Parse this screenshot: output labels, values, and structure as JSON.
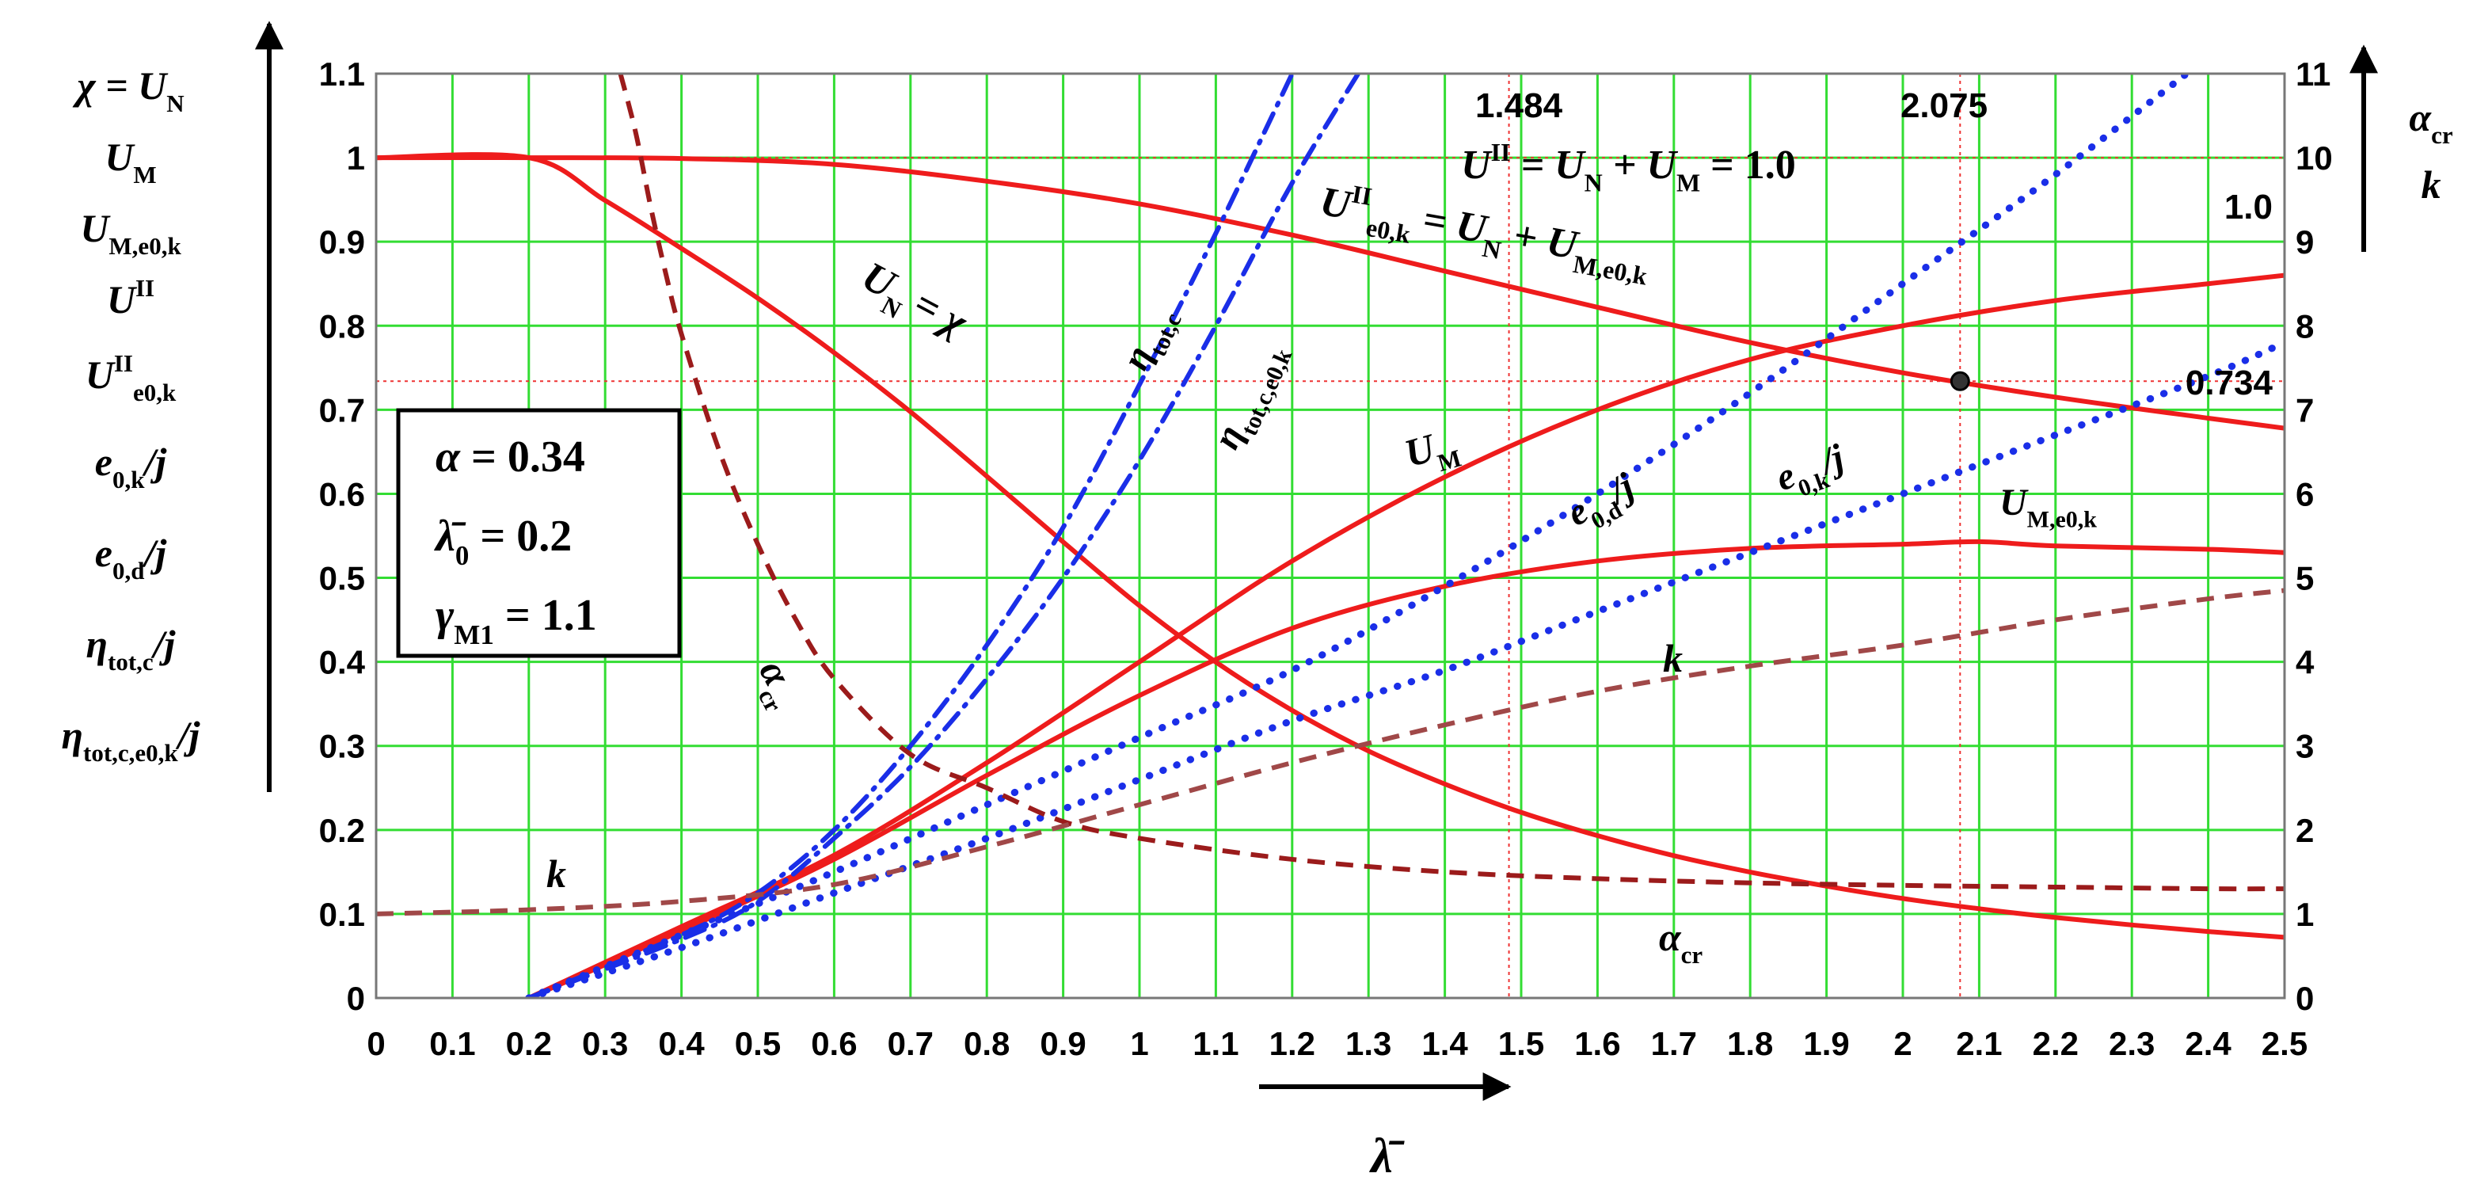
{
  "chart_data": {
    "type": "line",
    "x_axis": {
      "label": "λ̄",
      "range": [
        0,
        2.5
      ],
      "ticks": [
        "0",
        "0.1",
        "0.2",
        "0.3",
        "0.4",
        "0.5",
        "0.6",
        "0.7",
        "0.8",
        "0.9",
        "1",
        "1.1",
        "1.2",
        "1.3",
        "1.4",
        "1.5",
        "1.6",
        "1.7",
        "1.8",
        "1.9",
        "2",
        "2.1",
        "2.2",
        "2.3",
        "2.4",
        "2.5"
      ]
    },
    "y_axis_left": {
      "range": [
        0,
        1.1
      ],
      "ticks": [
        "0",
        "0.1",
        "0.2",
        "0.3",
        "0.4",
        "0.5",
        "0.6",
        "0.7",
        "0.8",
        "0.9",
        "1",
        "1.1"
      ],
      "labels": [
        {
          "main": "χ = U",
          "sub": "N"
        },
        {
          "main": "U",
          "sub": "M"
        },
        {
          "main": "U",
          "sub": "M,e0,k"
        },
        {
          "main": "U",
          "sup": "II"
        },
        {
          "main": "U",
          "sup": "II",
          "sub": "e0,k"
        },
        {
          "main": "e",
          "sub": "0,k",
          "tail": "/j"
        },
        {
          "main": "e",
          "sub": "0,d",
          "tail": "/j"
        },
        {
          "main": "η",
          "sub": "tot,c",
          "tail": "/j"
        },
        {
          "main": "η",
          "sub": "tot,c,e0,k",
          "tail": "/j"
        }
      ]
    },
    "y_axis_right": {
      "range": [
        0,
        11
      ],
      "ticks": [
        "0",
        "1",
        "2",
        "3",
        "4",
        "5",
        "6",
        "7",
        "8",
        "9",
        "10",
        "11"
      ],
      "labels": [
        {
          "main": "α",
          "sub": "cr"
        },
        {
          "main": "k"
        }
      ]
    },
    "grid": true,
    "grid_color": "#33dd33",
    "params_box": [
      {
        "lhs": "α",
        "rhs": "= 0.34"
      },
      {
        "lhs": "λ̄",
        "sub": "0",
        "rhs": "= 0.2"
      },
      {
        "lhs": "γ",
        "sub": "M1",
        "rhs": "= 1.1"
      }
    ],
    "reference_lines": [
      {
        "axis": "x",
        "value": 1.484,
        "label": "1.484"
      },
      {
        "axis": "x",
        "value": 2.075,
        "label": "2.075"
      },
      {
        "axis": "y",
        "value": 1.0,
        "label": "1.0"
      },
      {
        "axis": "y",
        "value": 0.734,
        "label": "0.734"
      }
    ],
    "marker": {
      "x": 2.075,
      "y": 0.734
    },
    "series": [
      {
        "name": "U_N = χ",
        "color": "#ee1c1c",
        "style": "solid",
        "axis": "left",
        "x": [
          0,
          0.2,
          0.3,
          0.4,
          0.5,
          0.6,
          0.7,
          0.8,
          0.9,
          1.0,
          1.1,
          1.2,
          1.3,
          1.4,
          1.5,
          1.6,
          1.7,
          1.8,
          1.9,
          2.0,
          2.1,
          2.2,
          2.3,
          2.4,
          2.5
        ],
        "y": [
          1.0,
          1.0,
          0.9491,
          0.892,
          0.8328,
          0.768,
          0.6976,
          0.6208,
          0.5427,
          0.4669,
          0.3998,
          0.3423,
          0.2939,
          0.2546,
          0.2209,
          0.1932,
          0.1694,
          0.1498,
          0.1331,
          0.1184,
          0.1062,
          0.0958,
          0.0869,
          0.0791,
          0.0722
        ]
      },
      {
        "name": "U^II_e0,k = U_N + U_M,e0,k",
        "color": "#ee1c1c",
        "style": "solid",
        "axis": "left",
        "x": [
          0,
          0.2,
          0.4,
          0.6,
          0.8,
          1.0,
          1.2,
          1.4,
          1.6,
          1.8,
          2.0,
          2.2,
          2.4,
          2.5
        ],
        "y": [
          1.0,
          1.0,
          0.999,
          0.992,
          0.972,
          0.945,
          0.908,
          0.865,
          0.822,
          0.78,
          0.744,
          0.715,
          0.69,
          0.678
        ]
      },
      {
        "name": "U_M",
        "color": "#ee1c1c",
        "style": "solid",
        "axis": "left",
        "x": [
          0.2,
          0.4,
          0.6,
          0.8,
          1.0,
          1.2,
          1.4,
          1.6,
          1.8,
          2.0,
          2.2,
          2.4,
          2.5
        ],
        "y": [
          0.0,
          0.085,
          0.17,
          0.28,
          0.4,
          0.52,
          0.62,
          0.7,
          0.76,
          0.8,
          0.83,
          0.85,
          0.86
        ]
      },
      {
        "name": "U_M,e0,k",
        "color": "#ee1c1c",
        "style": "solid",
        "axis": "left",
        "x": [
          0.2,
          0.4,
          0.6,
          0.8,
          1.0,
          1.2,
          1.4,
          1.6,
          1.8,
          2.0,
          2.1,
          2.2,
          2.4,
          2.5
        ],
        "y": [
          0.0,
          0.08,
          0.165,
          0.265,
          0.36,
          0.44,
          0.49,
          0.52,
          0.535,
          0.54,
          0.543,
          0.538,
          0.534,
          0.53
        ]
      },
      {
        "name": "η_tot,c",
        "color": "#1a2ee8",
        "style": "dashdot",
        "axis": "left",
        "x": [
          0.2,
          0.4,
          0.5,
          0.6,
          0.7,
          0.8,
          0.9,
          1.0,
          1.1,
          1.2
        ],
        "y": [
          0.0,
          0.075,
          0.125,
          0.2,
          0.3,
          0.42,
          0.56,
          0.73,
          0.91,
          1.1
        ]
      },
      {
        "name": "η_tot,c,e0,k",
        "color": "#1a2ee8",
        "style": "dashdot",
        "axis": "left",
        "x": [
          0.2,
          0.4,
          0.5,
          0.6,
          0.7,
          0.8,
          0.9,
          1.0,
          1.1,
          1.2,
          1.3
        ],
        "y": [
          0.0,
          0.07,
          0.115,
          0.19,
          0.275,
          0.38,
          0.5,
          0.64,
          0.8,
          0.97,
          1.12
        ]
      },
      {
        "name": "e0,d/j",
        "color": "#1a2ee8",
        "style": "dotted",
        "axis": "left",
        "x": [
          0.2,
          0.4,
          0.6,
          0.8,
          1.0,
          1.2,
          1.4,
          1.6,
          1.8,
          2.0,
          2.2,
          2.4
        ],
        "y": [
          0.0,
          0.075,
          0.15,
          0.23,
          0.31,
          0.39,
          0.49,
          0.6,
          0.72,
          0.85,
          0.98,
          1.12
        ]
      },
      {
        "name": "e0,k/j",
        "color": "#1a2ee8",
        "style": "dotted",
        "axis": "left",
        "x": [
          0.2,
          0.4,
          0.6,
          0.8,
          1.0,
          1.2,
          1.4,
          1.6,
          1.8,
          2.0,
          2.2,
          2.4,
          2.5
        ],
        "y": [
          0.0,
          0.06,
          0.125,
          0.19,
          0.26,
          0.33,
          0.39,
          0.46,
          0.53,
          0.6,
          0.67,
          0.74,
          0.78
        ]
      },
      {
        "name": "α_cr",
        "color": "#9b1b1b",
        "style": "dashed",
        "axis": "right",
        "x": [
          0.32,
          0.34,
          0.36,
          0.38,
          0.4,
          0.45,
          0.5,
          0.55,
          0.6,
          0.7,
          0.8,
          0.9,
          1.0,
          1.2,
          1.4,
          1.6,
          1.8,
          2.0,
          2.2,
          2.4,
          2.5
        ],
        "y": [
          11.0,
          10.3,
          9.4,
          8.6,
          7.9,
          6.5,
          5.4,
          4.5,
          3.8,
          2.9,
          2.5,
          2.1,
          1.9,
          1.65,
          1.5,
          1.42,
          1.37,
          1.34,
          1.32,
          1.3,
          1.3
        ]
      },
      {
        "name": "k",
        "color": "#a04848",
        "style": "dashed",
        "axis": "right",
        "x": [
          0,
          0.2,
          0.4,
          0.6,
          0.8,
          1.0,
          1.2,
          1.4,
          1.6,
          1.8,
          2.0,
          2.2,
          2.4,
          2.5
        ],
        "y": [
          1.0,
          1.05,
          1.15,
          1.35,
          1.8,
          2.3,
          2.8,
          3.25,
          3.65,
          3.95,
          4.2,
          4.5,
          4.75,
          4.85
        ]
      }
    ],
    "curve_labels": [
      {
        "series": "U_N = χ",
        "main": "U",
        "sub": "N",
        "tail": " = χ"
      },
      {
        "series": "U^II_e0,k",
        "main": "U",
        "sup": "II",
        "sub": "e0,k",
        "tail": " = U",
        "tail_sub": "N",
        "tail2": " + U",
        "tail2_sub": "M,e0,k"
      },
      {
        "series": "U^II",
        "main": "U",
        "sup": "II",
        "tail": " = U",
        "tail_sub": "N",
        "tail2": " + U",
        "tail2_sub": "M",
        "tail3": " = 1.0"
      },
      {
        "series": "U_M",
        "main": "U",
        "sub": "M"
      },
      {
        "series": "U_M,e0,k",
        "main": "U",
        "sub": "M,e0,k"
      },
      {
        "series": "η_tot,c",
        "main": "η",
        "sub": "tot,c"
      },
      {
        "series": "η_tot,c,e0,k",
        "main": "η",
        "sub": "tot,c,e0,k"
      },
      {
        "series": "e0,d/j",
        "main": "e",
        "sub": "0,d",
        "tail": "/j"
      },
      {
        "series": "e0,k/j",
        "main": "e",
        "sub": "0,k",
        "tail": "/j"
      },
      {
        "series": "α_cr",
        "main": "α",
        "sub": "cr"
      },
      {
        "series": "k",
        "main": "k"
      }
    ]
  }
}
